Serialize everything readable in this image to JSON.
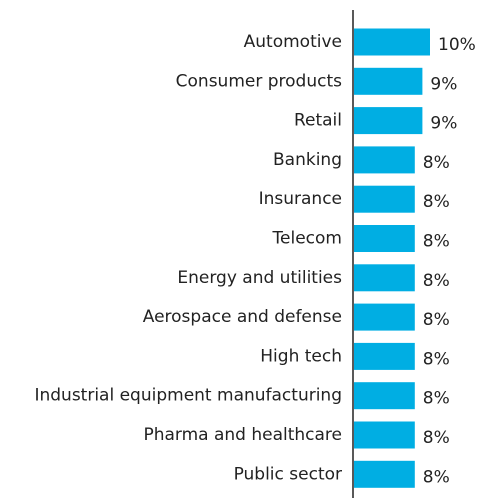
{
  "chart_data": {
    "type": "bar",
    "orientation": "horizontal",
    "categories": [
      "Automotive",
      "Consumer products",
      "Retail",
      "Banking",
      "Insurance",
      "Telecom",
      "Energy and utilities",
      "Aerospace and defense",
      "High tech",
      "Industrial equipment manufacturing",
      "Pharma and healthcare",
      "Public sector"
    ],
    "values": [
      10,
      9,
      9,
      8,
      8,
      8,
      8,
      8,
      8,
      8,
      8,
      8
    ],
    "value_labels": [
      "10%",
      "9%",
      "9%",
      "8%",
      "8%",
      "8%",
      "8%",
      "8%",
      "8%",
      "8%",
      "8%",
      "8%"
    ],
    "unit": "%",
    "title": "",
    "xlabel": "",
    "ylabel": "",
    "xlim": [
      0,
      10
    ],
    "grid": false,
    "legend": "none",
    "bar_color": "#00aee3",
    "axis_color": "#222222",
    "text_color": "#222222"
  }
}
